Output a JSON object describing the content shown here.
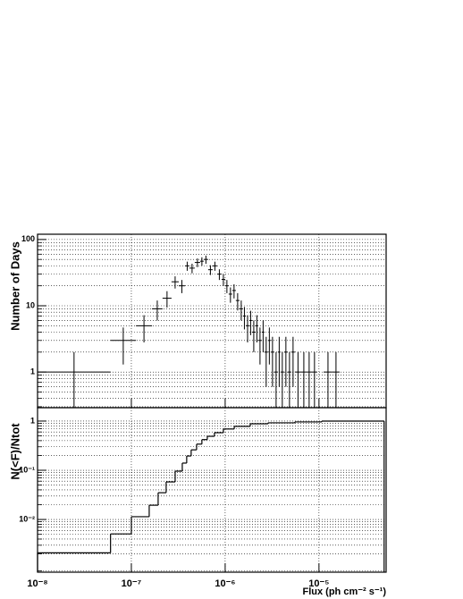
{
  "chart_data": [
    {
      "type": "histogram",
      "ylabel": "Number of Days",
      "bins": [
        1e-08,
        6e-08,
        1.12e-07,
        1.66e-07,
        2.15e-07,
        2.68e-07,
        3.2e-07,
        3.73e-07,
        4.16e-07,
        4.74e-07,
        5.41e-07,
        5.9e-07,
        6.59e-07,
        7.36e-07,
        8.21e-07,
        9.16e-07,
        1e-06,
        1.09e-06,
        1.19e-06,
        1.3e-06,
        1.42e-06,
        1.55e-06,
        1.66e-06,
        1.81e-06,
        1.93e-06,
        2.11e-06,
        2.25e-06,
        2.46e-06,
        2.62e-06,
        2.86e-06,
        3.06e-06,
        3.34e-06,
        3.65e-06,
        3.89e-06,
        4.25e-06,
        4.64e-06,
        5.07e-06,
        5.53e-06,
        6.46e-06,
        7.36e-06,
        8.39e-06,
        9.57e-06,
        1.12e-05,
        1.39e-05,
        1.66e-05
      ],
      "values": [
        1,
        3,
        5,
        9,
        13,
        23,
        20,
        40,
        37,
        45,
        47,
        50,
        35,
        40,
        30,
        25,
        20,
        15,
        17,
        12,
        9,
        7,
        5,
        6,
        4,
        5,
        3,
        4,
        2,
        3,
        2,
        1,
        2,
        1,
        2,
        1,
        2,
        1,
        1,
        1,
        1,
        0,
        1,
        1
      ],
      "errors": [
        1,
        1.7,
        2.2,
        3,
        3.6,
        4.8,
        4.5,
        6.3,
        6.1,
        6.7,
        6.9,
        7.1,
        5.9,
        6.3,
        5.5,
        5,
        4.5,
        3.9,
        4.1,
        3.5,
        3,
        2.6,
        2.2,
        2.4,
        2,
        2.2,
        1.7,
        2,
        1.4,
        1.7,
        1.4,
        1,
        1.4,
        1,
        1.4,
        1,
        1.4,
        1,
        1,
        1,
        1,
        0,
        1,
        1
      ],
      "color": "#000000",
      "xlog": true,
      "ylog": true,
      "xlim": [
        1e-08,
        5.2e-05
      ],
      "ylim": [
        0.29,
        120
      ],
      "xticks": [
        1e-08,
        1e-07,
        1e-06,
        1e-05
      ],
      "yticks": [
        1,
        10,
        100
      ],
      "grid": true,
      "minor_grid": true
    },
    {
      "type": "step",
      "xlabel": "Flux (ph cm⁻² s⁻¹)",
      "ylabel": "N(<F)/Ntot",
      "x": [
        1e-08,
        6e-08,
        1e-07,
        1.55e-07,
        1.93e-07,
        2.35e-07,
        2.93e-07,
        3.49e-07,
        3.89e-07,
        4.34e-07,
        4.96e-07,
        5.65e-07,
        6.45e-07,
        7.69e-07,
        9.57e-07,
        1.25e-06,
        1.85e-06,
        2.86e-06,
        5.53e-06,
        1.07e-05,
        4.95e-05
      ],
      "values": [
        0.0021,
        0.0051,
        0.0114,
        0.0195,
        0.035,
        0.058,
        0.096,
        0.14,
        0.195,
        0.26,
        0.34,
        0.42,
        0.49,
        0.58,
        0.69,
        0.78,
        0.88,
        0.92,
        0.96,
        1.0,
        1.0
      ],
      "color": "#000000",
      "xlog": true,
      "ylog": true,
      "xlim": [
        1e-08,
        5.2e-05
      ],
      "ylim": [
        0.00085,
        1.87
      ],
      "xticks": [
        {
          "value": 1e-08,
          "label": "10⁻⁸"
        },
        {
          "value": 1e-07,
          "label": "10⁻⁷"
        },
        {
          "value": 1e-06,
          "label": "10⁻⁶"
        },
        {
          "value": 1e-05,
          "label": "10⁻⁵"
        }
      ],
      "yticks": [
        {
          "value": 1,
          "label": "1"
        },
        {
          "value": 0.1,
          "label": "10⁻¹"
        },
        {
          "value": 0.01,
          "label": "10⁻²"
        }
      ],
      "grid": true,
      "minor_grid": true
    }
  ]
}
